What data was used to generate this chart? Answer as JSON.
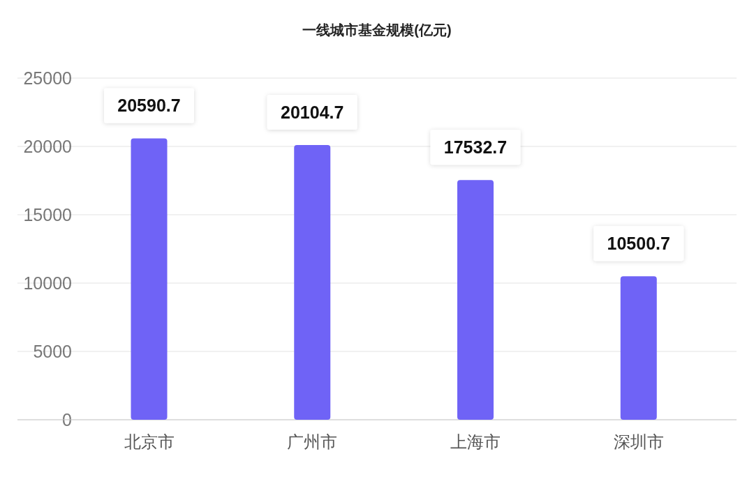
{
  "chart_data": {
    "type": "bar",
    "title": "一线城市基金规模(亿元)",
    "categories": [
      "北京市",
      "广州市",
      "上海市",
      "深圳市"
    ],
    "values": [
      20590.7,
      20104.7,
      17532.7,
      10500.7
    ],
    "color": "#6f63f6",
    "ylim": [
      0,
      25000
    ],
    "yticks": [
      0,
      5000,
      10000,
      15000,
      20000,
      25000
    ],
    "grid": "y",
    "data_labels": true
  }
}
